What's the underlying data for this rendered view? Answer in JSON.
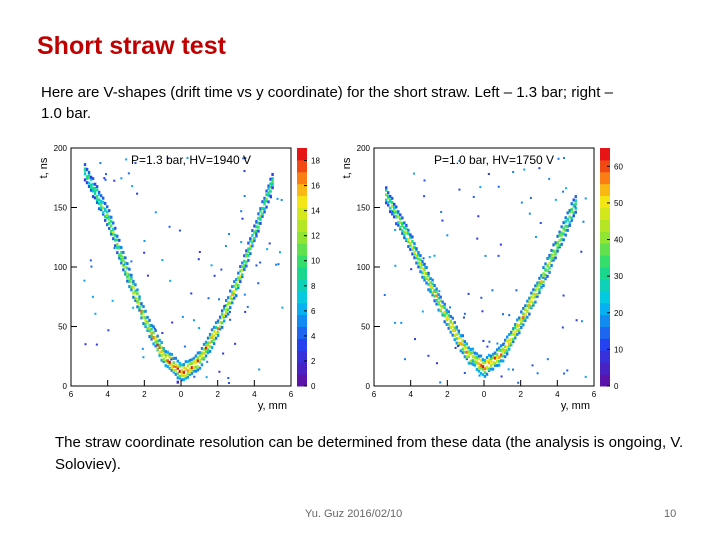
{
  "slide": {
    "title": "Short straw test",
    "intro": "Here are V-shapes (drift time vs y coordinate) for the short straw.  Left – 1.3 bar; right – 1.0 bar.",
    "outro": "The straw coordinate resolution can be determined from these data (the analysis is ongoing, V. Soloviev).",
    "footer": "Yu. Guz 2016/02/10",
    "page_number": "10"
  },
  "chart_data": [
    {
      "type": "heatmap",
      "title": "P=1.3 bar, HV=1940 V",
      "xlabel": "y, mm",
      "ylabel": "t, ns",
      "xlim": [
        -6,
        6
      ],
      "ylim": [
        0,
        200
      ],
      "x_ticks": [
        "6",
        "4",
        "2",
        "0",
        "2",
        "4",
        "6"
      ],
      "y_ticks": [
        "0",
        "50",
        "100",
        "150",
        "200"
      ],
      "z_ticks": [
        "0",
        "2",
        "4",
        "6",
        "8",
        "10",
        "12",
        "14",
        "16",
        "18"
      ],
      "zlim": [
        0,
        19
      ],
      "shape": "V",
      "v_points": [
        {
          "x": -5.3,
          "t": 180
        },
        {
          "x": -4.0,
          "t": 140
        },
        {
          "x": -3.0,
          "t": 95
        },
        {
          "x": -2.0,
          "t": 55
        },
        {
          "x": -1.0,
          "t": 25
        },
        {
          "x": 0.0,
          "t": 10
        },
        {
          "x": 1.0,
          "t": 22
        },
        {
          "x": 2.0,
          "t": 50
        },
        {
          "x": 3.0,
          "t": 85
        },
        {
          "x": 4.0,
          "t": 130
        },
        {
          "x": 5.0,
          "t": 175
        }
      ]
    },
    {
      "type": "heatmap",
      "title": "P=1.0 bar, HV=1750 V",
      "xlabel": "y, mm",
      "ylabel": "t, ns",
      "xlim": [
        -6,
        6
      ],
      "ylim": [
        0,
        200
      ],
      "x_ticks": [
        "6",
        "4",
        "2",
        "0",
        "2",
        "4",
        "6"
      ],
      "y_ticks": [
        "0",
        "50",
        "100",
        "150",
        "200"
      ],
      "z_ticks": [
        "0",
        "10",
        "20",
        "30",
        "40",
        "50",
        "60"
      ],
      "zlim": [
        0,
        65
      ],
      "shape": "V",
      "v_points": [
        {
          "x": -5.4,
          "t": 160
        },
        {
          "x": -4.0,
          "t": 118
        },
        {
          "x": -3.0,
          "t": 85
        },
        {
          "x": -2.0,
          "t": 55
        },
        {
          "x": -1.0,
          "t": 28
        },
        {
          "x": 0.0,
          "t": 15
        },
        {
          "x": 1.0,
          "t": 28
        },
        {
          "x": 2.0,
          "t": 55
        },
        {
          "x": 3.0,
          "t": 85
        },
        {
          "x": 4.0,
          "t": 120
        },
        {
          "x": 5.0,
          "t": 155
        }
      ]
    }
  ]
}
